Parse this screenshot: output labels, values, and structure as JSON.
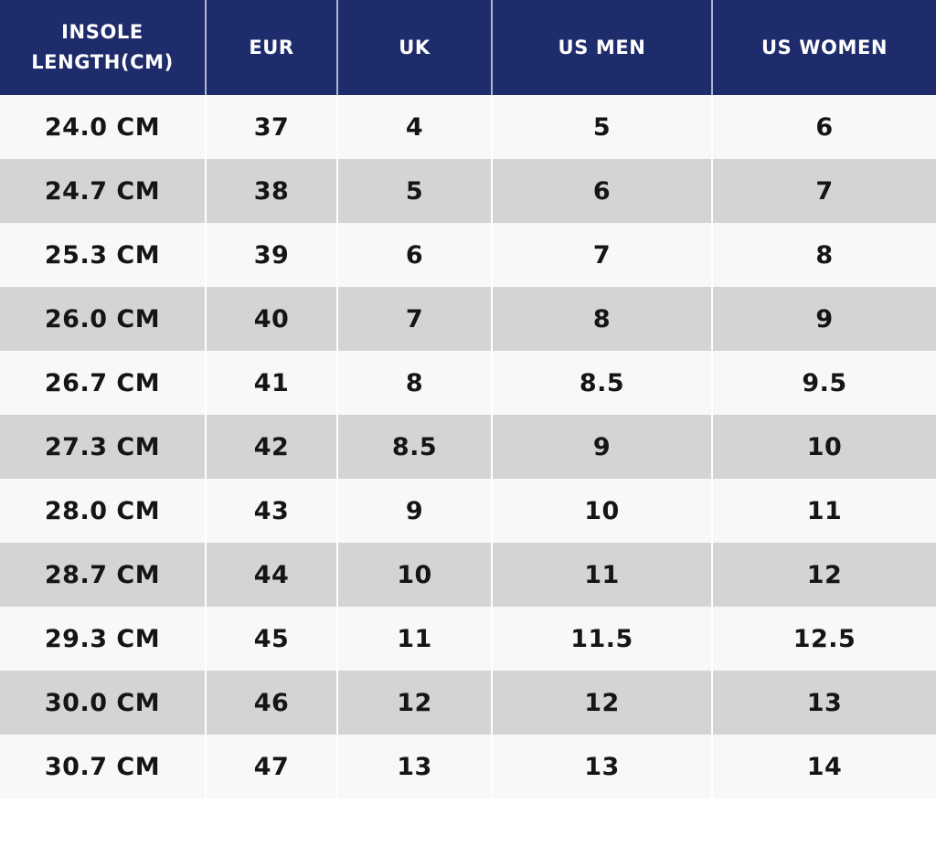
{
  "table": {
    "colors": {
      "header_bg": "#1F2C6B",
      "header_text": "#FFFFFF",
      "row_light_bg": "#F8F8F7",
      "row_dark_bg": "#D4D4D4",
      "cell_text": "#151515",
      "divider": "#FFFFFF"
    },
    "columns": [
      "INSOLE LENGTH(CM)",
      "EUR",
      "UK",
      "US MEN",
      "US WOMEN"
    ],
    "rows": [
      {
        "cells": [
          "24.0 CM",
          "37",
          "4",
          "5",
          "6"
        ]
      },
      {
        "cells": [
          "24.7 CM",
          "38",
          "5",
          "6",
          "7"
        ]
      },
      {
        "cells": [
          "25.3 CM",
          "39",
          "6",
          "7",
          "8"
        ]
      },
      {
        "cells": [
          "26.0 CM",
          "40",
          "7",
          "8",
          "9"
        ]
      },
      {
        "cells": [
          "26.7 CM",
          "41",
          "8",
          "8.5",
          "9.5"
        ]
      },
      {
        "cells": [
          "27.3 CM",
          "42",
          "8.5",
          "9",
          "10"
        ]
      },
      {
        "cells": [
          "28.0 CM",
          "43",
          "9",
          "10",
          "11"
        ]
      },
      {
        "cells": [
          "28.7 CM",
          "44",
          "10",
          "11",
          "12"
        ]
      },
      {
        "cells": [
          "29.3 CM",
          "45",
          "11",
          "11.5",
          "12.5"
        ]
      },
      {
        "cells": [
          "30.0 CM",
          "46",
          "12",
          "12",
          "13"
        ]
      },
      {
        "cells": [
          "30.7 CM",
          "47",
          "13",
          "13",
          "14"
        ]
      }
    ]
  },
  "chart_data": {
    "type": "table",
    "columns": [
      "INSOLE LENGTH(CM)",
      "EUR",
      "UK",
      "US MEN",
      "US WOMEN"
    ],
    "rows": [
      [
        "24.0 CM",
        "37",
        "4",
        "5",
        "6"
      ],
      [
        "24.7 CM",
        "38",
        "5",
        "6",
        "7"
      ],
      [
        "25.3 CM",
        "39",
        "6",
        "7",
        "8"
      ],
      [
        "26.0 CM",
        "40",
        "7",
        "8",
        "9"
      ],
      [
        "26.7 CM",
        "41",
        "8",
        "8.5",
        "9.5"
      ],
      [
        "27.3 CM",
        "42",
        "8.5",
        "9",
        "10"
      ],
      [
        "28.0 CM",
        "43",
        "9",
        "10",
        "11"
      ],
      [
        "28.7 CM",
        "44",
        "10",
        "11",
        "12"
      ],
      [
        "29.3 CM",
        "45",
        "11",
        "11.5",
        "12.5"
      ],
      [
        "30.0 CM",
        "46",
        "12",
        "12",
        "13"
      ],
      [
        "30.7 CM",
        "47",
        "13",
        "13",
        "14"
      ]
    ],
    "layout": {
      "header_background": "#1F2C6B",
      "alternating_row_backgrounds": [
        "#F8F8F7",
        "#D4D4D4"
      ],
      "grid": "white vertical dividers between columns"
    }
  }
}
